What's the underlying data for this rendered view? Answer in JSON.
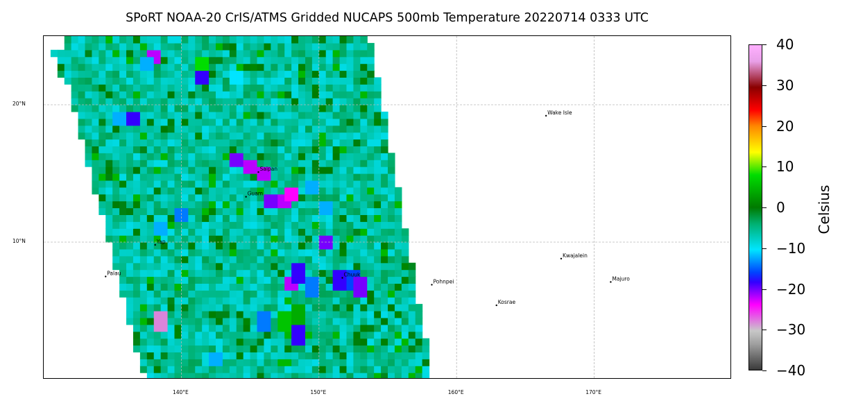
{
  "chart_data": {
    "type": "heatmap",
    "title": "SPoRT NOAA-20 CrIS/ATMS Gridded NUCAPS 500mb Temperature 20220714 0333 UTC",
    "xlim": [
      130,
      180
    ],
    "ylim": [
      0,
      25
    ],
    "xticks": [
      {
        "value": 140,
        "label": "140°E"
      },
      {
        "value": 150,
        "label": "150°E"
      },
      {
        "value": 160,
        "label": "160°E"
      },
      {
        "value": 170,
        "label": "170°E"
      }
    ],
    "yticks": [
      {
        "value": 10,
        "label": "10°N"
      },
      {
        "value": 20,
        "label": "20°N"
      }
    ],
    "grid": true,
    "colorbar": {
      "label": "Celsius",
      "range": [
        -40,
        40
      ],
      "ticks": [
        "40",
        "30",
        "20",
        "10",
        "0",
        "−10",
        "−20",
        "−30",
        "−40"
      ],
      "colors": [
        "#3a3a3a",
        "#a0a0a0",
        "#ff00ff",
        "#0044ff",
        "#00e5ff",
        "#00b070",
        "#007a00",
        "#00dd00",
        "#ffff00",
        "#ff8800",
        "#ff0000",
        "#8a0000",
        "#ffb0ff"
      ]
    },
    "swath": {
      "typical_value": -6,
      "anomalies": [
        {
          "lon": 138.2,
          "lat": 23.3,
          "value": -22
        },
        {
          "lon": 137.5,
          "lat": 22.8,
          "value": -12
        },
        {
          "lon": 135.5,
          "lat": 19.2,
          "value": -12
        },
        {
          "lon": 136.5,
          "lat": 19.2,
          "value": -18
        },
        {
          "lon": 141.5,
          "lat": 21.8,
          "value": -18
        },
        {
          "lon": 144.2,
          "lat": 16.2,
          "value": -20
        },
        {
          "lon": 144.8,
          "lat": 15.3,
          "value": -22
        },
        {
          "lon": 145.8,
          "lat": 14.8,
          "value": -22
        },
        {
          "lon": 146.5,
          "lat": 13.2,
          "value": -20
        },
        {
          "lon": 147.5,
          "lat": 12.8,
          "value": -22
        },
        {
          "lon": 148.2,
          "lat": 13.7,
          "value": -24
        },
        {
          "lon": 149.5,
          "lat": 14.2,
          "value": -12
        },
        {
          "lon": 150.5,
          "lat": 12.7,
          "value": -12
        },
        {
          "lon": 140.0,
          "lat": 11.8,
          "value": -14
        },
        {
          "lon": 138.5,
          "lat": 11.2,
          "value": -12
        },
        {
          "lon": 150.3,
          "lat": 9.8,
          "value": -20
        },
        {
          "lon": 147.8,
          "lat": 7.0,
          "value": -22
        },
        {
          "lon": 148.5,
          "lat": 7.7,
          "value": -18
        },
        {
          "lon": 151.5,
          "lat": 7.2,
          "value": -18
        },
        {
          "lon": 152.3,
          "lat": 7.2,
          "value": -16
        },
        {
          "lon": 153.2,
          "lat": 6.8,
          "value": -20
        },
        {
          "lon": 149.5,
          "lat": 6.7,
          "value": -14
        },
        {
          "lon": 146.0,
          "lat": 4.2,
          "value": -14
        },
        {
          "lon": 148.5,
          "lat": 4.7,
          "value": 4
        },
        {
          "lon": 147.5,
          "lat": 4.2,
          "value": 6
        },
        {
          "lon": 148.5,
          "lat": 3.2,
          "value": -18
        },
        {
          "lon": 138.5,
          "lat": 4.2,
          "value": -28
        },
        {
          "lon": 142.5,
          "lat": 1.7,
          "value": -12
        },
        {
          "lon": 144.0,
          "lat": 22.2,
          "value": -10
        },
        {
          "lon": 141.5,
          "lat": 22.8,
          "value": 8
        }
      ]
    },
    "places": [
      {
        "name": "Wake Isle",
        "lon": 166.6,
        "lat": 19.3
      },
      {
        "name": "Saipan",
        "lon": 145.7,
        "lat": 15.2
      },
      {
        "name": "Guam",
        "lon": 144.8,
        "lat": 13.4
      },
      {
        "name": "Yap",
        "lon": 138.2,
        "lat": 9.9
      },
      {
        "name": "Palau",
        "lon": 134.6,
        "lat": 7.6
      },
      {
        "name": "Chuuk",
        "lon": 151.8,
        "lat": 7.5
      },
      {
        "name": "Pohnpei",
        "lon": 158.3,
        "lat": 7.0
      },
      {
        "name": "Kosrae",
        "lon": 163.0,
        "lat": 5.5
      },
      {
        "name": "Kwajalein",
        "lon": 167.7,
        "lat": 8.9
      },
      {
        "name": "Majuro",
        "lon": 171.3,
        "lat": 7.2
      }
    ]
  }
}
